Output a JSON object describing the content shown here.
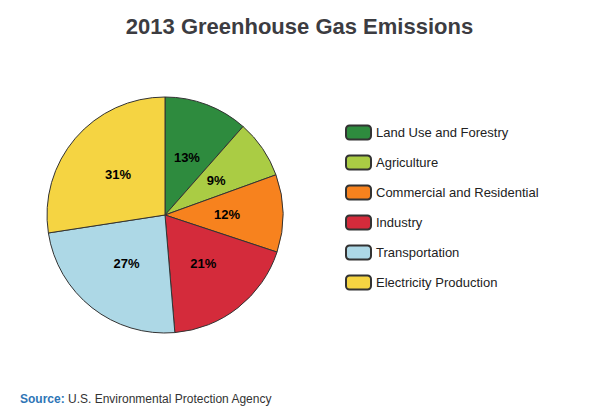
{
  "chart_data": {
    "type": "pie",
    "title": "2013 Greenhouse Gas Emissions",
    "categories": [
      "Land Use and Forestry",
      "Agriculture",
      "Commercial and Residential",
      "Industry",
      "Transportation",
      "Electricity Production"
    ],
    "values": [
      13,
      9,
      12,
      21,
      27,
      31
    ],
    "value_labels": [
      "13%",
      "9%",
      "12%",
      "21%",
      "27%",
      "31%"
    ],
    "colors": [
      "#2E8B3E",
      "#AACC44",
      "#F7821E",
      "#D42B3B",
      "#ADD8E6",
      "#F5D442"
    ],
    "data_labels": true,
    "legend": "right",
    "annotations": [
      "Source:",
      "U.S. Environmental Protection Agency"
    ]
  }
}
